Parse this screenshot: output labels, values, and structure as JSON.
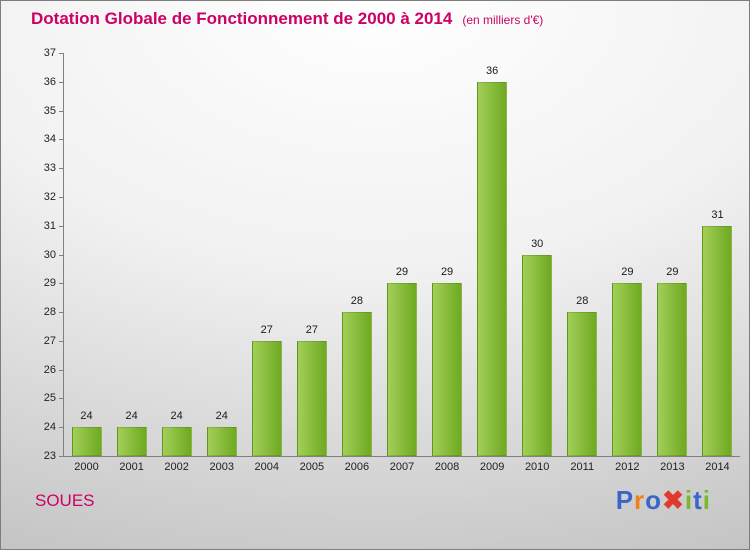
{
  "header": {
    "title": "Dotation Globale de Fonctionnement de 2000 à 2014",
    "subtitle": "(en milliers d'€)"
  },
  "footer": {
    "location": "SOUES"
  },
  "logo": {
    "name": "Proxiti",
    "letters": [
      {
        "ch": "P",
        "color": "#3a66c8"
      },
      {
        "ch": "r",
        "color": "#f08019"
      },
      {
        "ch": "o",
        "color": "#3a66c8"
      },
      {
        "ch": "✖",
        "color": "#e03a2f"
      },
      {
        "ch": "i",
        "color": "#7cb82f"
      },
      {
        "ch": "t",
        "color": "#3a66c8"
      },
      {
        "ch": "i",
        "color": "#7cb82f"
      }
    ]
  },
  "colors": {
    "accent_title": "#cc0066",
    "bar_gradient_start": "#a2cf58",
    "bar_gradient_end": "#6fa921",
    "axis": "#808080",
    "tick_text": "#222222"
  },
  "chart_data": {
    "type": "bar",
    "title": "Dotation Globale de Fonctionnement de 2000 à 2014",
    "subtitle": "(en milliers d'€)",
    "categories": [
      "2000",
      "2001",
      "2002",
      "2003",
      "2004",
      "2005",
      "2006",
      "2007",
      "2008",
      "2009",
      "2010",
      "2011",
      "2012",
      "2013",
      "2014"
    ],
    "values": [
      24,
      24,
      24,
      24,
      27,
      27,
      28,
      29,
      29,
      36,
      30,
      28,
      29,
      29,
      31
    ],
    "xlabel": "",
    "ylabel": "",
    "ylim": [
      23,
      37
    ],
    "ytick_step": 1,
    "grid": false,
    "legend": false,
    "data_labels": true
  }
}
